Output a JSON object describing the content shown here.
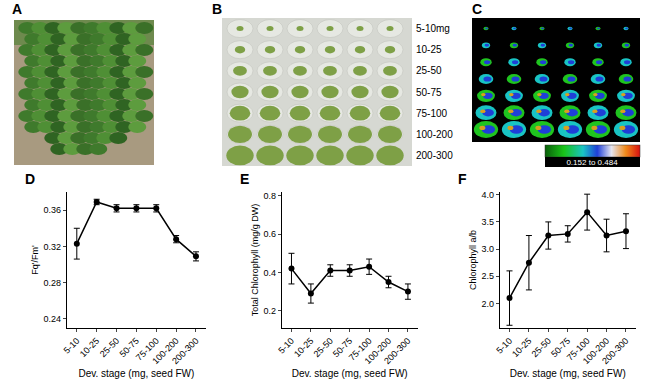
{
  "panels": [
    {
      "label": "A"
    },
    {
      "label": "B",
      "row_labels": [
        "5-10mg",
        "10-25",
        "25-50",
        "50-75",
        "75-100",
        "100-200",
        "200-300"
      ]
    },
    {
      "label": "C",
      "scale_label": "0.152 to 0.484"
    }
  ],
  "chart_data": [
    {
      "type": "line",
      "annotations": [
        "D"
      ],
      "xlabel": "Dev. stage (mg, seed FW)",
      "ylabel": "Fq'/Fm'",
      "categories": [
        "5-10",
        "10-25",
        "25-50",
        "50-75",
        "75-100",
        "100-200",
        "200-300"
      ],
      "values": [
        0.323,
        0.369,
        0.362,
        0.362,
        0.362,
        0.328,
        0.309
      ],
      "error": [
        0.017,
        0.003,
        0.004,
        0.004,
        0.004,
        0.004,
        0.005
      ],
      "color": "#000000",
      "marker": "circle",
      "ylim": [
        0.23,
        0.38
      ],
      "yticks": [
        0.24,
        0.28,
        0.32,
        0.36
      ]
    },
    {
      "type": "line",
      "annotations": [
        "E"
      ],
      "xlabel": "Dev. stage (mg, seed FW)",
      "ylabel": "Total Chlorophyll (mg/g DW)",
      "categories": [
        "5-10",
        "10-25",
        "25-50",
        "50-75",
        "75-100",
        "100-200",
        "200-300"
      ],
      "values": [
        0.42,
        0.29,
        0.41,
        0.41,
        0.43,
        0.35,
        0.3
      ],
      "error": [
        0.08,
        0.05,
        0.03,
        0.03,
        0.04,
        0.03,
        0.04
      ],
      "color": "#000000",
      "marker": "circle",
      "ylim": [
        0.11,
        0.82
      ],
      "yticks": [
        0.2,
        0.4,
        0.6,
        0.8
      ]
    },
    {
      "type": "line",
      "annotations": [
        "F"
      ],
      "xlabel": "Dev. stage (mg, seed FW)",
      "ylabel": "Chlorophyll a/b",
      "categories": [
        "5-10",
        "10-25",
        "25-50",
        "50-75",
        "75-100",
        "100-200",
        "200-300"
      ],
      "values": [
        2.1,
        2.75,
        3.25,
        3.28,
        3.68,
        3.25,
        3.33
      ],
      "error": [
        0.5,
        0.5,
        0.25,
        0.15,
        0.33,
        0.3,
        0.32
      ],
      "color": "#000000",
      "marker": "circle",
      "ylim": [
        1.55,
        4.05
      ],
      "yticks": [
        {
          "value": 2,
          "label": "2.0"
        },
        {
          "value": 2.5,
          "label": "2.5"
        },
        {
          "value": 3,
          "label": "3.0"
        },
        {
          "value": 3.5,
          "label": "3.5"
        },
        {
          "value": 4,
          "label": "4.0"
        }
      ]
    }
  ]
}
